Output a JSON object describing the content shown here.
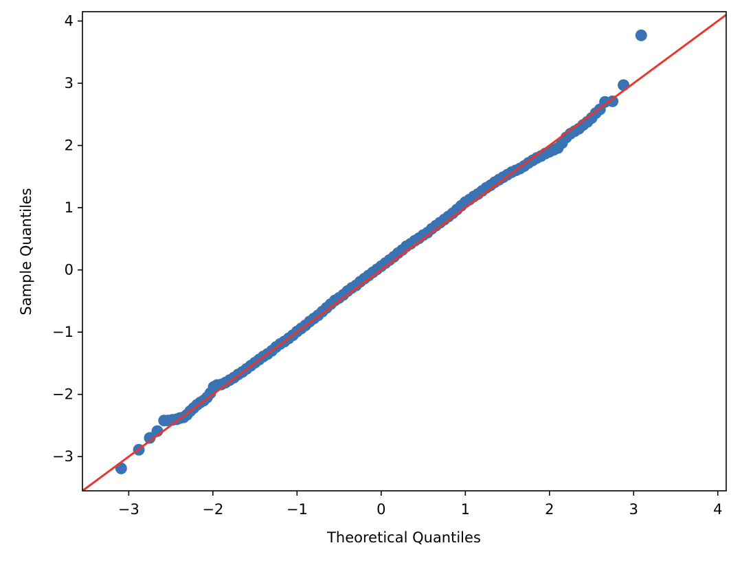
{
  "chart_data": {
    "type": "scatter",
    "title": "",
    "xlabel": "Theoretical Quantiles",
    "ylabel": "Sample Quantiles",
    "xlim": [
      -3.55,
      4.1
    ],
    "ylim": [
      -3.55,
      4.15
    ],
    "x_ticks": [
      -3,
      -2,
      -1,
      0,
      1,
      2,
      3,
      4
    ],
    "y_ticks": [
      -3,
      -2,
      -1,
      0,
      1,
      2,
      3,
      4
    ],
    "x_tick_labels": [
      "−3",
      "−2",
      "−1",
      "0",
      "1",
      "2",
      "3",
      "4"
    ],
    "y_tick_labels": [
      "−3",
      "−2",
      "−1",
      "0",
      "1",
      "2",
      "3",
      "4"
    ],
    "grid": false,
    "legend": "none",
    "series": [
      {
        "kind": "points",
        "color": "#3a73b4",
        "x": [
          -3.09,
          -2.88,
          -2.75,
          -2.66,
          -2.58,
          -2.53,
          -2.48,
          -2.43,
          -2.39,
          -2.35,
          -2.31,
          -2.27,
          -2.23,
          -2.19,
          -2.15,
          -2.11,
          -2.07,
          -2.03,
          -1.99,
          -1.95,
          -1.9,
          -1.85,
          -1.8,
          -1.75,
          -1.7,
          -1.65,
          -1.6,
          -1.55,
          -1.5,
          -1.45,
          -1.4,
          -1.35,
          -1.3,
          -1.25,
          -1.2,
          -1.15,
          -1.1,
          -1.05,
          -1.0,
          -0.95,
          -0.9,
          -0.85,
          -0.8,
          -0.75,
          -0.7,
          -0.65,
          -0.6,
          -0.55,
          -0.5,
          -0.45,
          -0.4,
          -0.35,
          -0.3,
          -0.25,
          -0.2,
          -0.15,
          -0.1,
          -0.05,
          0.0,
          0.05,
          0.1,
          0.15,
          0.2,
          0.25,
          0.3,
          0.35,
          0.4,
          0.45,
          0.5,
          0.55,
          0.6,
          0.65,
          0.7,
          0.75,
          0.8,
          0.85,
          0.9,
          0.95,
          1.0,
          1.05,
          1.1,
          1.15,
          1.2,
          1.25,
          1.3,
          1.35,
          1.4,
          1.45,
          1.5,
          1.55,
          1.6,
          1.65,
          1.7,
          1.75,
          1.8,
          1.85,
          1.9,
          1.95,
          2.0,
          2.05,
          2.1,
          2.15,
          2.2,
          2.25,
          2.3,
          2.35,
          2.4,
          2.45,
          2.5,
          2.55,
          2.6,
          2.66,
          2.75,
          2.88,
          3.09
        ],
        "y": [
          -3.19,
          -2.89,
          -2.7,
          -2.59,
          -2.42,
          -2.42,
          -2.41,
          -2.4,
          -2.38,
          -2.37,
          -2.33,
          -2.27,
          -2.22,
          -2.17,
          -2.13,
          -2.1,
          -2.05,
          -1.98,
          -1.88,
          -1.85,
          -1.84,
          -1.81,
          -1.77,
          -1.73,
          -1.68,
          -1.64,
          -1.59,
          -1.54,
          -1.49,
          -1.44,
          -1.39,
          -1.35,
          -1.3,
          -1.24,
          -1.19,
          -1.15,
          -1.1,
          -1.05,
          -0.99,
          -0.94,
          -0.89,
          -0.83,
          -0.78,
          -0.73,
          -0.67,
          -0.61,
          -0.55,
          -0.49,
          -0.45,
          -0.4,
          -0.34,
          -0.29,
          -0.25,
          -0.19,
          -0.14,
          -0.09,
          -0.04,
          0.01,
          0.06,
          0.11,
          0.16,
          0.21,
          0.27,
          0.32,
          0.38,
          0.42,
          0.47,
          0.51,
          0.56,
          0.6,
          0.66,
          0.71,
          0.76,
          0.81,
          0.86,
          0.91,
          0.97,
          1.03,
          1.09,
          1.13,
          1.18,
          1.22,
          1.27,
          1.32,
          1.36,
          1.41,
          1.45,
          1.49,
          1.53,
          1.57,
          1.6,
          1.63,
          1.67,
          1.72,
          1.76,
          1.8,
          1.83,
          1.87,
          1.9,
          1.93,
          1.96,
          2.04,
          2.13,
          2.19,
          2.23,
          2.27,
          2.33,
          2.38,
          2.44,
          2.52,
          2.58,
          2.7,
          2.71,
          2.97,
          3.77
        ]
      },
      {
        "kind": "reference-line",
        "color": "#e8382d",
        "x": [
          -3.55,
          4.1
        ],
        "y": [
          -3.55,
          4.1
        ]
      }
    ]
  }
}
